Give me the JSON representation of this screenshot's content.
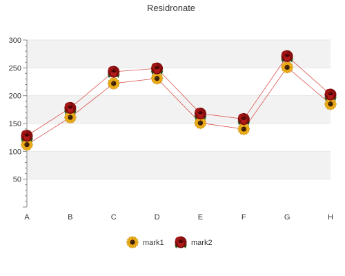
{
  "chart_data": {
    "type": "line",
    "title": "Residronate",
    "xlabel": "",
    "ylabel": "",
    "categories": [
      "A",
      "B",
      "C",
      "D",
      "E",
      "F",
      "G",
      "H"
    ],
    "ylim": [
      0,
      300
    ],
    "yticks": [
      50,
      100,
      150,
      200,
      250,
      300
    ],
    "grid": "horizontal alternating bands",
    "legend": "bottom-center",
    "series": [
      {
        "name": "mark1",
        "values": [
          112,
          161,
          222,
          231,
          151,
          140,
          251,
          185
        ],
        "color": "#d9534f",
        "marker": "sunflower-icon"
      },
      {
        "name": "mark2",
        "values": [
          128,
          178,
          243,
          249,
          168,
          158,
          271,
          202
        ],
        "color": "#d9534f",
        "marker": "rose-icon"
      }
    ]
  }
}
